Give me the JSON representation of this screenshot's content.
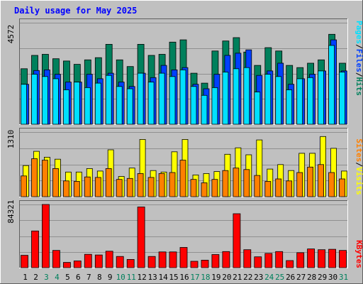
{
  "colors": {
    "background": "#c0c0c0",
    "title": "#0000ff",
    "hits": "#00805c",
    "files": "#0040ff",
    "pages": "#00e0ff",
    "visits": "#ffff00",
    "sites": "#ff8000",
    "kbytes": "#ff0000",
    "weekend_day": "#00805c",
    "weekday_day": "#000000"
  },
  "chart_data": {
    "type": "bar",
    "title": "Daily usage for May 2025",
    "days": [
      "1",
      "2",
      "3",
      "4",
      "5",
      "6",
      "7",
      "8",
      "9",
      "10",
      "11",
      "12",
      "13",
      "14",
      "15",
      "16",
      "17",
      "18",
      "19",
      "20",
      "21",
      "22",
      "23",
      "24",
      "25",
      "26",
      "27",
      "28",
      "29",
      "30",
      "31"
    ],
    "weekend_days": [
      "3",
      "4",
      "10",
      "11",
      "17",
      "18",
      "24",
      "25",
      "31"
    ],
    "panels": [
      {
        "name": "hits-files-pages",
        "max_label": "4572",
        "ymax": 4572,
        "legend": [
          "Pages",
          "Files",
          "Hits"
        ],
        "series": [
          {
            "name": "Hits",
            "values": [
              2500,
              3100,
              3150,
              2950,
              2850,
              2700,
              2900,
              3000,
              3600,
              2900,
              2600,
              3600,
              3100,
              3150,
              3700,
              3800,
              2300,
              1850,
              3300,
              3750,
              3900,
              3250,
              2650,
              3450,
              3300,
              2650,
              2550,
              2750,
              2900,
              4050,
              2750
            ]
          },
          {
            "name": "Files",
            "values": [
              1800,
              2420,
              2450,
              2250,
              1900,
              1900,
              2250,
              2050,
              2300,
              1900,
              1700,
              2300,
              2100,
              2650,
              2450,
              2550,
              1800,
              1600,
              2250,
              3100,
              3200,
              3350,
              2200,
              2400,
              2750,
              1800,
              2050,
              2250,
              2400,
              3800,
              2400
            ]
          },
          {
            "name": "Pages",
            "values": [
              1800,
              2250,
              2150,
              2050,
              1550,
              1900,
              1650,
              1850,
              2200,
              1700,
              1600,
              2300,
              1900,
              2300,
              2150,
              2450,
              1700,
              1300,
              1650,
              2350,
              2500,
              2550,
              1450,
              2250,
              2150,
              1550,
              2050,
              2100,
              2400,
              3550,
              2350
            ]
          }
        ]
      },
      {
        "name": "visits-sites",
        "max_label": "1310",
        "ymax": 1310,
        "legend": [
          "Sites",
          "Visits"
        ],
        "series": [
          {
            "name": "Visits",
            "values": [
              630,
              920,
              800,
              760,
              500,
              500,
              570,
              520,
              950,
              410,
              580,
              1160,
              530,
              500,
              910,
              1160,
              440,
              470,
              510,
              860,
              990,
              850,
              1150,
              560,
              650,
              530,
              880,
              880,
              1220,
              980,
              520
            ]
          },
          {
            "name": "Sites",
            "values": [
              420,
              770,
              740,
              570,
              320,
              310,
              400,
              390,
              570,
              350,
              370,
              470,
              390,
              470,
              490,
              740,
              350,
              280,
              350,
              530,
              580,
              550,
              430,
              310,
              360,
              320,
              490,
              600,
              650,
              490,
              360
            ]
          }
        ]
      },
      {
        "name": "kbytes",
        "max_label": "84321",
        "ymax": 84321,
        "legend": [
          "KBytes"
        ],
        "series": [
          {
            "name": "KBytes",
            "values": [
              16500,
              49000,
              84321,
              23000,
              7000,
              9000,
              17800,
              17000,
              22000,
              15000,
              11000,
              81000,
              15000,
              21000,
              21000,
              27000,
              8500,
              10000,
              17500,
              21500,
              72000,
              24000,
              14500,
              19000,
              21500,
              9500,
              20000,
              25000,
              24000,
              24500,
              23000
            ]
          }
        ]
      }
    ]
  }
}
